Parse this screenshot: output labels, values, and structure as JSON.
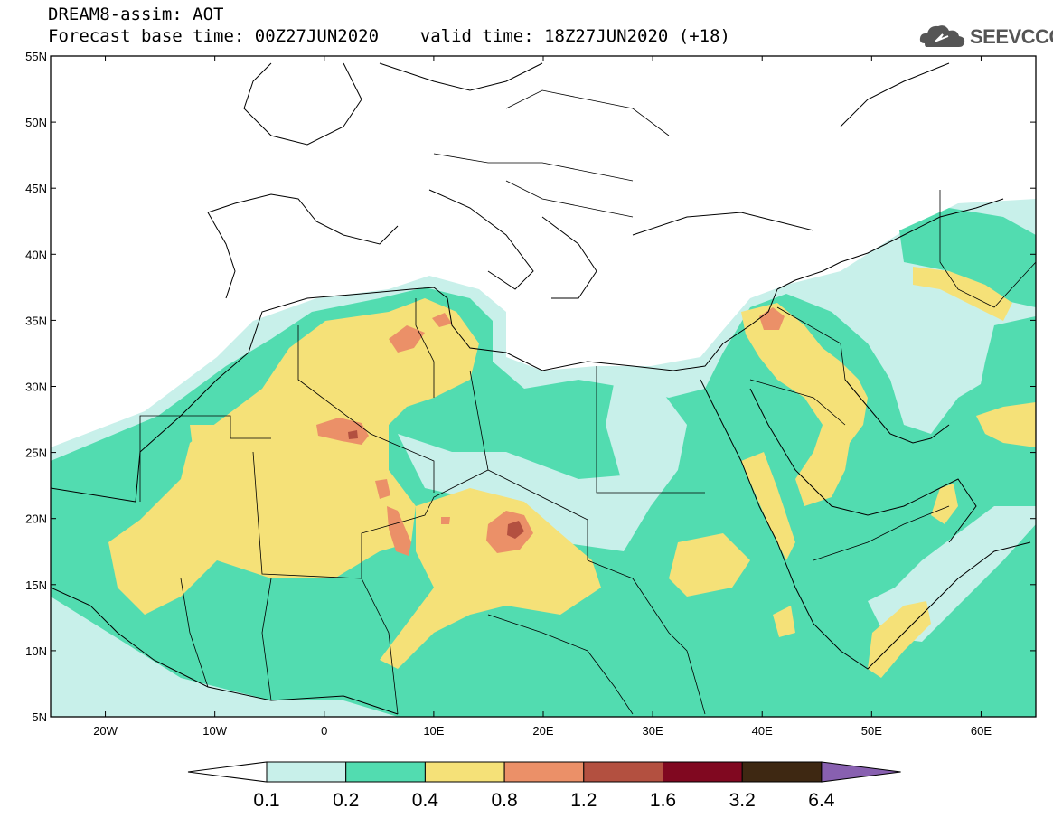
{
  "title": {
    "line1": "DREAM8-assim: AOT",
    "line2": "Forecast base time: 00Z27JUN2020    valid time: 18Z27JUN2020 (+18)"
  },
  "logo": {
    "text": "SEEVCCC"
  },
  "map": {
    "lon_range": [
      -25,
      65
    ],
    "lat_range": [
      5,
      55
    ],
    "lon_ticks": [
      {
        "value": -20,
        "label": "20W"
      },
      {
        "value": -10,
        "label": "10W"
      },
      {
        "value": 0,
        "label": "0"
      },
      {
        "value": 10,
        "label": "10E"
      },
      {
        "value": 20,
        "label": "20E"
      },
      {
        "value": 30,
        "label": "30E"
      },
      {
        "value": 40,
        "label": "40E"
      },
      {
        "value": 50,
        "label": "50E"
      },
      {
        "value": 60,
        "label": "60E"
      }
    ],
    "lat_ticks": [
      {
        "value": 5,
        "label": "5N"
      },
      {
        "value": 10,
        "label": "10N"
      },
      {
        "value": 15,
        "label": "15N"
      },
      {
        "value": 20,
        "label": "20N"
      },
      {
        "value": 25,
        "label": "25N"
      },
      {
        "value": 30,
        "label": "30N"
      },
      {
        "value": 35,
        "label": "35N"
      },
      {
        "value": 40,
        "label": "40N"
      },
      {
        "value": 45,
        "label": "45N"
      },
      {
        "value": 50,
        "label": "50N"
      },
      {
        "value": 55,
        "label": "55N"
      }
    ]
  },
  "colorbar": {
    "labels": [
      "0.1",
      "0.2",
      "0.4",
      "0.8",
      "1.2",
      "1.6",
      "3.2",
      "6.4"
    ],
    "colors": [
      "#c8f0ea",
      "#52dcb0",
      "#f5e178",
      "#eb9068",
      "#b35040",
      "#800820",
      "#3e2812",
      "#8860b0"
    ]
  }
}
